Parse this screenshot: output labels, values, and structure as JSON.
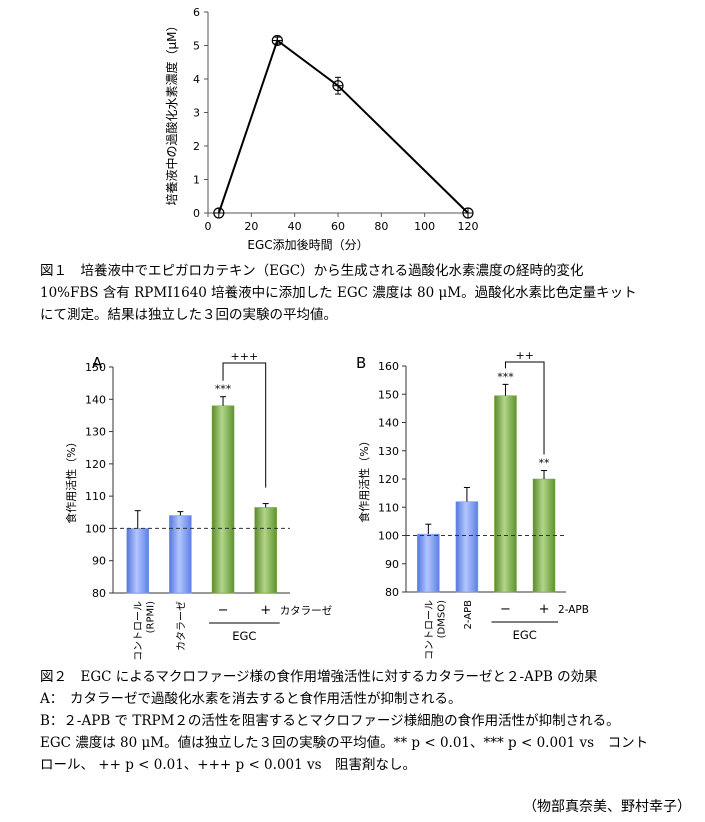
{
  "figure1": {
    "caption_title": "図１　培養液中でエピガロカテキン（EGC）から生成される過酸化水素濃度の経時的変化",
    "caption_line2": "10%FBS 含有 RPMI1640 培養液中に添加した EGC 濃度は 80 μM。過酸化水素比色定量キット",
    "caption_line3": "にて測定。結果は独立した３回の実験の平均値。"
  },
  "figure2": {
    "caption_title": "図２　EGC によるマクロファージ様の食作用増強活性に対するカタラーゼと２-APB の効果",
    "caption_a": "A：　カタラーゼで過酸化水素を消去すると食作用活性が抑制される。",
    "caption_b": "B：２-APB で TRPM２の活性を阻害するとマクロファージ様細胞の食作用活性が抑制される。",
    "caption_l3": "EGC 濃度は 80 μM。値は独立した３回の実験の平均値。** p < 0.01、*** p < 0.001 vs　コント",
    "caption_l4": "ロール、 ++ p < 0.01、+++ p < 0.001 vs　阻害剤なし。"
  },
  "credit": "（物部真奈美、野村幸子）",
  "chart_data": [
    {
      "type": "line",
      "xlabel": "EGC添加後時間（分）",
      "ylabel": "培養液中の過酸化水素濃度（μM）",
      "x": [
        5,
        32,
        60,
        120
      ],
      "y": [
        0,
        5.15,
        3.8,
        0
      ],
      "error": [
        0,
        0.1,
        0.25,
        0
      ],
      "xlim": [
        0,
        120
      ],
      "ylim": [
        0,
        6
      ],
      "xticks": [
        0,
        20,
        40,
        60,
        80,
        100,
        120
      ],
      "yticks": [
        0,
        1,
        2,
        3,
        4,
        5,
        6
      ]
    },
    {
      "type": "bar",
      "panel": "A",
      "ylabel": "食作用活性（%）",
      "ylim": [
        80,
        150
      ],
      "yticks": [
        80,
        90,
        100,
        110,
        120,
        130,
        140,
        150
      ],
      "categories": [
        "コントロール\n(RPMI)",
        "カタラーゼ",
        "−",
        "+"
      ],
      "values": [
        100,
        104,
        138,
        106.5
      ],
      "errors": [
        5.5,
        1.2,
        2.8,
        1.2
      ],
      "colors": [
        "#7799ee",
        "#7799ee",
        "#77aa44",
        "#77aa44"
      ],
      "sig": [
        "",
        "",
        "***",
        ""
      ],
      "bracket_label": "+++",
      "row_label": "カタラーゼ",
      "group_label": "EGC",
      "reference_line": 100
    },
    {
      "type": "bar",
      "panel": "B",
      "ylabel": "食作用活性（%）",
      "ylim": [
        80,
        160
      ],
      "yticks": [
        80,
        90,
        100,
        110,
        120,
        130,
        140,
        150,
        160
      ],
      "categories": [
        "コントロール\n(DMSO)",
        "2-APB",
        "−",
        "+"
      ],
      "values": [
        100.5,
        112,
        149.5,
        120
      ],
      "errors": [
        3.5,
        5,
        4,
        3
      ],
      "colors": [
        "#7799ee",
        "#7799ee",
        "#77aa44",
        "#77aa44"
      ],
      "sig": [
        "",
        "",
        "***",
        "**"
      ],
      "bracket_label": "++",
      "row_label": "2-APB",
      "group_label": "EGC",
      "reference_line": 100
    }
  ]
}
